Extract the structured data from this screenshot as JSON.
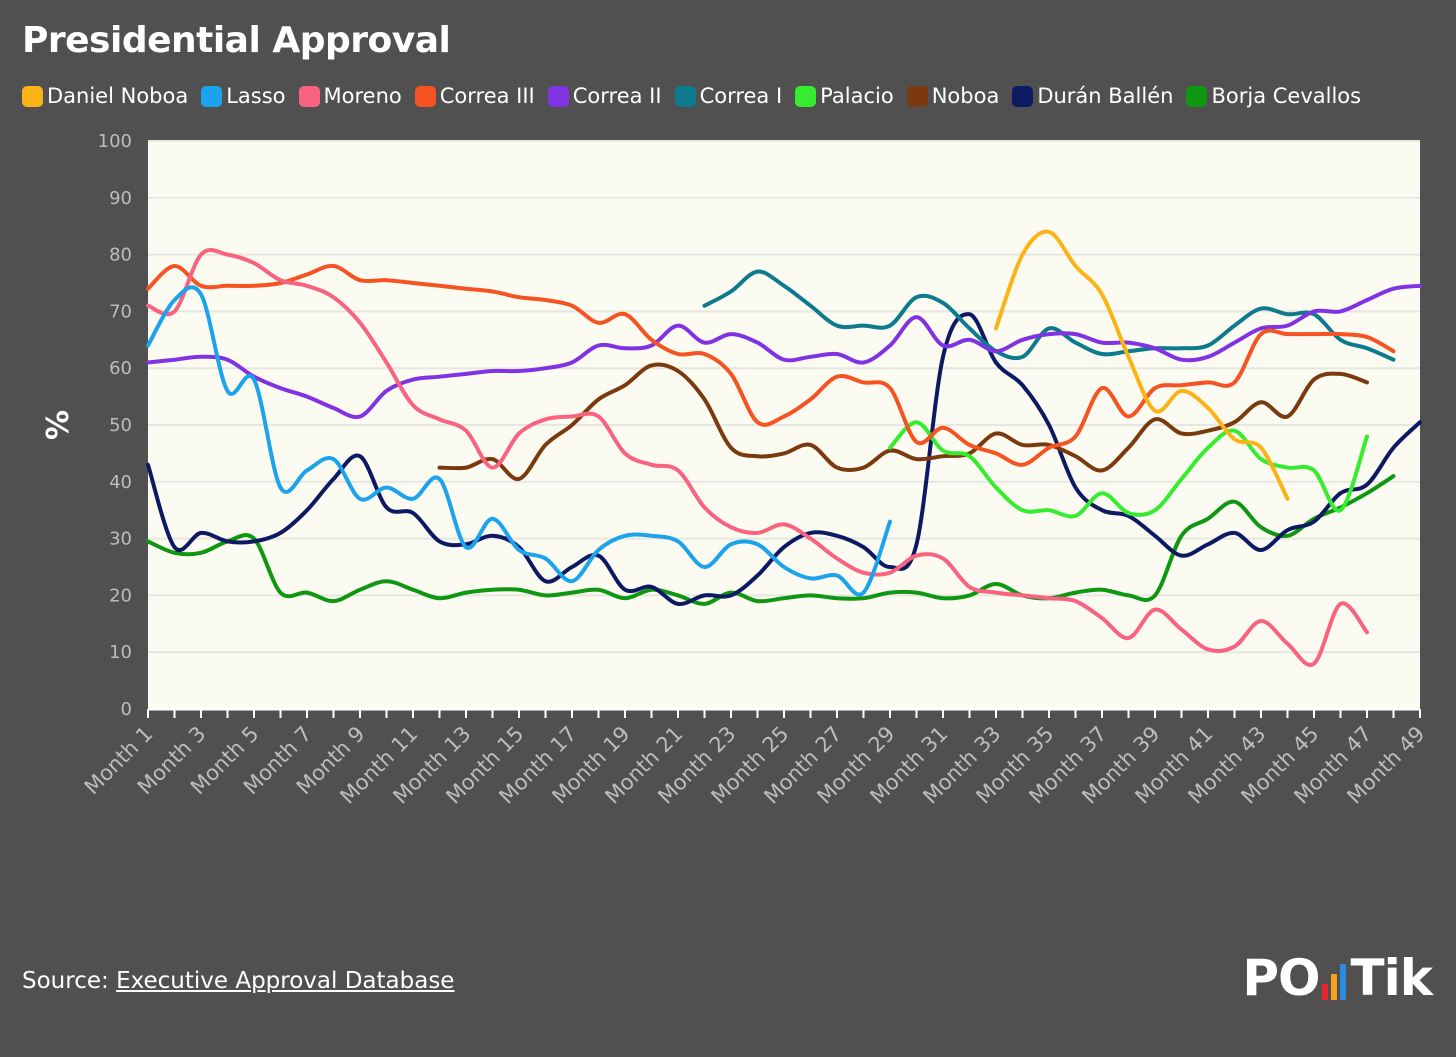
{
  "title": "Presidential Approval",
  "source": {
    "prefix": "Source: ",
    "link_text": "Executive Approval Database"
  },
  "logo": {
    "left": "PO",
    "right": "Tik",
    "bar_colors": [
      "#e8252f",
      "#f6a11e",
      "#2a8be0"
    ]
  },
  "chart_data": {
    "type": "line",
    "title": "Presidential Approval",
    "ylabel": "%",
    "xlabel": "",
    "ylim": [
      0,
      100
    ],
    "yticks": [
      0,
      10,
      20,
      30,
      40,
      50,
      60,
      70,
      80,
      90,
      100
    ],
    "grid": true,
    "legend_position": "top",
    "categories": [
      "Month 1",
      "Month 2",
      "Month 3",
      "Month 4",
      "Month 5",
      "Month 6",
      "Month 7",
      "Month 8",
      "Month 9",
      "Month 10",
      "Month 11",
      "Month 12",
      "Month 13",
      "Month 14",
      "Month 15",
      "Month 16",
      "Month 17",
      "Month 18",
      "Month 19",
      "Month 20",
      "Month 21",
      "Month 22",
      "Month 23",
      "Month 24",
      "Month 25",
      "Month 26",
      "Month 27",
      "Month 28",
      "Month 29",
      "Month 30",
      "Month 31",
      "Month 32",
      "Month 33",
      "Month 34",
      "Month 35",
      "Month 36",
      "Month 37",
      "Month 38",
      "Month 39",
      "Month 40",
      "Month 41",
      "Month 42",
      "Month 43",
      "Month 44",
      "Month 45",
      "Month 46",
      "Month 47",
      "Month 48",
      "Month 49"
    ],
    "tick_labels": [
      "Month 1",
      "Month 3",
      "Month 5",
      "Month 7",
      "Month 9",
      "Month 11",
      "Month 13",
      "Month 15",
      "Month 17",
      "Month 19",
      "Month 21",
      "Month 23",
      "Month 25",
      "Month 27",
      "Month 29",
      "Month 31",
      "Month 33",
      "Month 35",
      "Month 37",
      "Month 39",
      "Month 41",
      "Month 43",
      "Month 45",
      "Month 47",
      "Month 49"
    ],
    "series": [
      {
        "name": "Daniel Noboa",
        "color": "#fbb315",
        "values": [
          null,
          null,
          null,
          null,
          null,
          null,
          null,
          null,
          null,
          null,
          null,
          null,
          null,
          null,
          null,
          null,
          null,
          null,
          null,
          null,
          null,
          null,
          null,
          null,
          null,
          null,
          null,
          null,
          null,
          null,
          null,
          null,
          67,
          80,
          84,
          78,
          73,
          62,
          52.5,
          56,
          53,
          47.5,
          46,
          37,
          null,
          null,
          null,
          null,
          null
        ]
      },
      {
        "name": "Lasso",
        "color": "#1ca3ec",
        "values": [
          64,
          72,
          73,
          56,
          58,
          39,
          42,
          44,
          37,
          39,
          37,
          40.5,
          28.5,
          33.5,
          28,
          26.5,
          22.5,
          28,
          30.5,
          30.5,
          29.5,
          25,
          29,
          29,
          25,
          23,
          23.5,
          20.5,
          33,
          null,
          null,
          null,
          null,
          null,
          null,
          null,
          null,
          null,
          null,
          null,
          null,
          null,
          null,
          null,
          null,
          null,
          null,
          null,
          null
        ]
      },
      {
        "name": "Moreno",
        "color": "#f8637f",
        "values": [
          71,
          70,
          80,
          80,
          78.5,
          75.5,
          74.5,
          72.5,
          68,
          61,
          53.5,
          51,
          49,
          42.5,
          48.5,
          51,
          51.5,
          51.5,
          45,
          43,
          42,
          35.5,
          32,
          31,
          32.5,
          30,
          26.5,
          24,
          24,
          27,
          26.5,
          21.5,
          20.5,
          20,
          19.5,
          19,
          16,
          12.5,
          17.5,
          14,
          10.5,
          11,
          15.5,
          11.5,
          8,
          18.5,
          13.5,
          null,
          null
        ]
      },
      {
        "name": "Correa III",
        "color": "#f55322",
        "values": [
          74,
          78,
          74.5,
          74.5,
          74.5,
          75,
          76.5,
          78,
          75.5,
          75.5,
          75,
          74.5,
          74,
          73.5,
          72.5,
          72,
          71,
          68,
          69.5,
          65,
          62.5,
          62.5,
          59,
          50.5,
          51.5,
          54.5,
          58.5,
          57.5,
          56.5,
          47,
          49.5,
          46.5,
          45,
          43,
          46,
          48,
          56.5,
          51.5,
          56.5,
          57,
          57.5,
          57.5,
          66,
          66,
          66,
          66,
          65.5,
          63,
          null
        ]
      },
      {
        "name": "Correa II",
        "color": "#8133e3",
        "values": [
          61,
          61.5,
          62,
          61.5,
          58.5,
          56.5,
          55,
          53,
          51.5,
          56,
          58,
          58.5,
          59,
          59.5,
          59.5,
          60,
          61,
          64,
          63.5,
          64,
          67.5,
          64.5,
          66,
          64.5,
          61.5,
          62,
          62.5,
          61,
          64,
          69,
          64,
          65,
          63,
          65,
          66,
          66,
          64.5,
          64.5,
          63.5,
          61.5,
          62,
          64.5,
          67,
          67.5,
          70,
          70,
          72,
          74,
          74.5
        ]
      },
      {
        "name": "Correa I",
        "color": "#0d7a8e",
        "values": [
          null,
          null,
          null,
          null,
          null,
          null,
          null,
          null,
          null,
          null,
          null,
          null,
          null,
          null,
          null,
          null,
          null,
          null,
          null,
          null,
          null,
          71,
          73.5,
          77,
          74.5,
          71,
          67.5,
          67.5,
          67.5,
          72.5,
          71.5,
          67,
          63,
          62,
          67,
          64.5,
          62.5,
          63,
          63.5,
          63.5,
          64,
          67.5,
          70.5,
          69.5,
          69.5,
          65,
          63.5,
          61.5,
          null
        ]
      },
      {
        "name": "Palacio",
        "color": "#36ec2e",
        "values": [
          null,
          null,
          null,
          null,
          null,
          null,
          null,
          null,
          null,
          null,
          null,
          null,
          null,
          null,
          null,
          null,
          null,
          null,
          null,
          null,
          null,
          null,
          null,
          null,
          null,
          null,
          null,
          null,
          46,
          50.5,
          45.5,
          44.5,
          39,
          35,
          35,
          34,
          38,
          34.5,
          35,
          40.5,
          46,
          49,
          44,
          42.5,
          42,
          35,
          48,
          null,
          null
        ]
      },
      {
        "name": "Noboa",
        "color": "#7b3a0d",
        "values": [
          null,
          null,
          null,
          null,
          null,
          null,
          null,
          null,
          null,
          null,
          null,
          42.5,
          42.5,
          44,
          40.5,
          46.5,
          50,
          54.5,
          57,
          60.5,
          59.5,
          54.5,
          46,
          44.5,
          45,
          46.5,
          42.5,
          42.5,
          45.5,
          44,
          44.5,
          45,
          48.5,
          46.5,
          46.5,
          44.5,
          42,
          46,
          51,
          48.5,
          49,
          50.5,
          54,
          51.5,
          58,
          59,
          57.5,
          null,
          null
        ]
      },
      {
        "name": "Durán Ballén",
        "color": "#0d1a63",
        "values": [
          43,
          28.5,
          31,
          29.5,
          29.5,
          31,
          35,
          40.5,
          44.5,
          35.5,
          34.5,
          29.5,
          29,
          30.5,
          28.5,
          22.5,
          25,
          27,
          21,
          21.5,
          18.5,
          20,
          20,
          23.5,
          28.5,
          31,
          30.5,
          28.5,
          25,
          29,
          62,
          69.5,
          61,
          57,
          50,
          39,
          35,
          34,
          30.5,
          27,
          29,
          31,
          28,
          31.5,
          33,
          38,
          39.5,
          46,
          50.5
        ]
      },
      {
        "name": "Borja Cevallos",
        "color": "#109712",
        "values": [
          29.5,
          27.5,
          27.5,
          29.5,
          30,
          20.5,
          20.5,
          19,
          21,
          22.5,
          21,
          19.5,
          20.5,
          21,
          21,
          20,
          20.5,
          21,
          19.5,
          21,
          20,
          18.5,
          20.5,
          19,
          19.5,
          20,
          19.5,
          19.5,
          20.5,
          20.5,
          19.5,
          20,
          22,
          20,
          19.5,
          20.5,
          21,
          20,
          20,
          30.5,
          33.5,
          36.5,
          32,
          30.5,
          33.5,
          35.5,
          38,
          41,
          null
        ]
      }
    ]
  }
}
